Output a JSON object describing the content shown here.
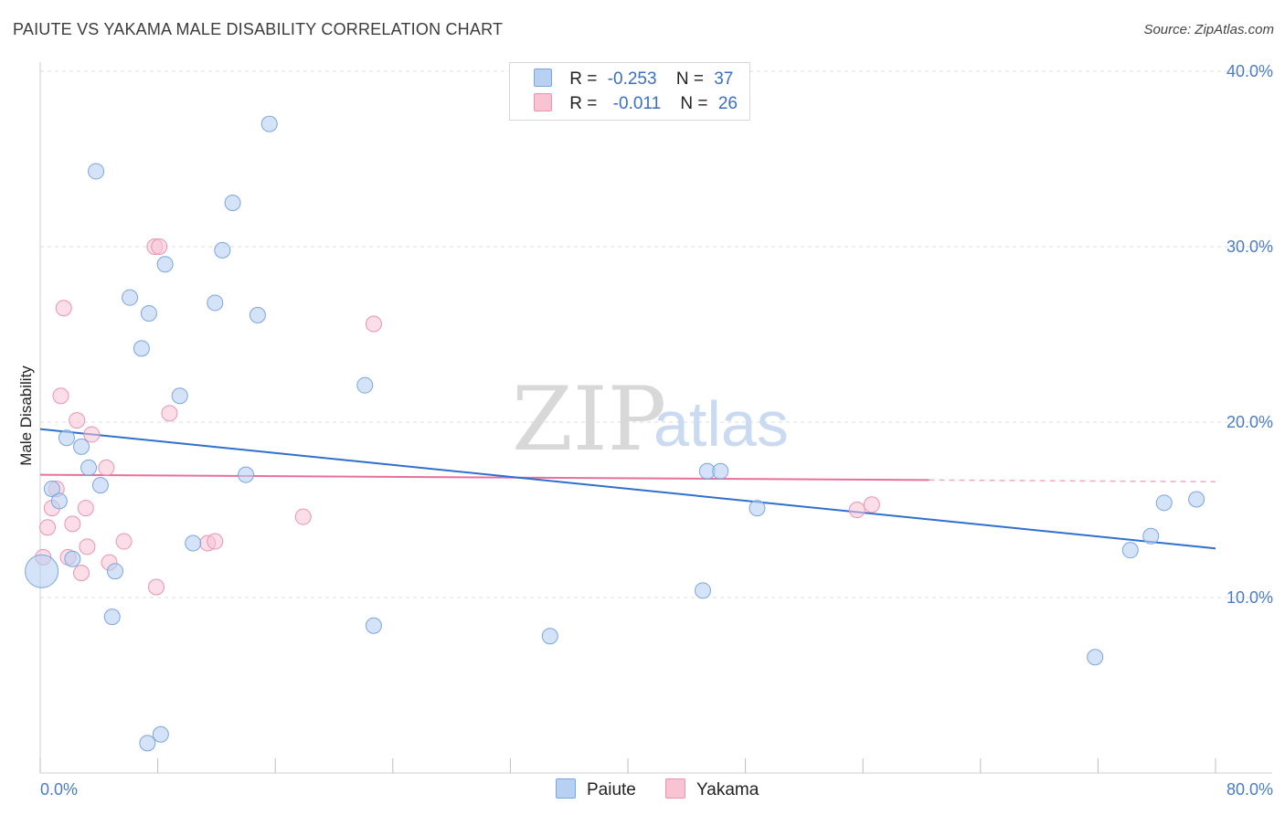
{
  "header": {
    "title": "PAIUTE VS YAKAMA MALE DISABILITY CORRELATION CHART",
    "source": "Source: ZipAtlas.com"
  },
  "watermark": {
    "part1": "ZIP",
    "part2": "atlas"
  },
  "legend": {
    "rows": [
      {
        "r_label": "R =",
        "r_value": "-0.253",
        "n_label": "N =",
        "n_value": "37"
      },
      {
        "r_label": "R =",
        "r_value": "-0.011",
        "n_label": "N =",
        "n_value": "26"
      }
    ]
  },
  "bottom_legend": {
    "paiute": "Paiute",
    "yakama": "Yakama"
  },
  "colors": {
    "paiute_fill": "#b8d0f2",
    "paiute_stroke": "#7aa6e0",
    "paiute_line": "#2f6fce",
    "yakama_fill": "#f8c3d3",
    "yakama_stroke": "#ec93b1",
    "yakama_line": "#e8709c",
    "tick": "#4a7cc9",
    "grid": "#dddddd"
  },
  "chart_data": {
    "type": "scatter",
    "title": "PAIUTE VS YAKAMA MALE DISABILITY CORRELATION CHART",
    "xlabel": "",
    "ylabel": "Male Disability",
    "xlim": [
      0,
      80
    ],
    "ylim": [
      0,
      40
    ],
    "x_tick_labels": [
      "0.0%",
      "80.0%"
    ],
    "y_tick_labels": [
      "10.0%",
      "20.0%",
      "30.0%",
      "40.0%"
    ],
    "y_ticks": [
      10,
      20,
      30,
      40
    ],
    "grid": true,
    "series": [
      {
        "name": "Paiute",
        "r": -0.253,
        "n": 37,
        "trend": {
          "x": [
            0,
            80
          ],
          "y": [
            19.6,
            12.8
          ]
        },
        "points": [
          [
            0.1,
            11.5,
            "large"
          ],
          [
            0.8,
            16.2
          ],
          [
            1.3,
            15.5
          ],
          [
            1.8,
            19.1
          ],
          [
            2.2,
            12.2
          ],
          [
            2.8,
            18.6
          ],
          [
            3.3,
            17.4
          ],
          [
            4.1,
            16.4
          ],
          [
            4.9,
            8.9
          ],
          [
            5.1,
            11.5
          ],
          [
            3.8,
            34.3
          ],
          [
            6.1,
            27.1
          ],
          [
            6.9,
            24.2
          ],
          [
            7.4,
            26.2
          ],
          [
            7.3,
            1.7
          ],
          [
            8.2,
            2.2
          ],
          [
            8.5,
            29.0
          ],
          [
            9.5,
            21.5
          ],
          [
            10.4,
            13.1
          ],
          [
            11.9,
            26.8
          ],
          [
            12.4,
            29.8
          ],
          [
            13.1,
            32.5
          ],
          [
            14.0,
            17.0
          ],
          [
            14.8,
            26.1
          ],
          [
            15.6,
            37.0
          ],
          [
            22.1,
            22.1
          ],
          [
            22.7,
            8.4
          ],
          [
            34.7,
            7.8
          ],
          [
            45.1,
            10.4
          ],
          [
            45.4,
            17.2
          ],
          [
            46.3,
            17.2
          ],
          [
            48.8,
            15.1
          ],
          [
            71.8,
            6.6
          ],
          [
            74.2,
            12.7
          ],
          [
            75.6,
            13.5
          ],
          [
            76.5,
            15.4
          ],
          [
            78.7,
            15.6
          ]
        ]
      },
      {
        "name": "Yakama",
        "r": -0.011,
        "n": 26,
        "trend": {
          "x": [
            0,
            60.5
          ],
          "y": [
            17.0,
            16.7
          ],
          "dashed_x": [
            60.5,
            80
          ],
          "dashed_y": [
            16.7,
            16.6
          ]
        },
        "points": [
          [
            0.2,
            12.3
          ],
          [
            0.5,
            14.0
          ],
          [
            0.8,
            15.1
          ],
          [
            1.1,
            16.2
          ],
          [
            1.4,
            21.5
          ],
          [
            1.6,
            26.5
          ],
          [
            1.9,
            12.3
          ],
          [
            2.2,
            14.2
          ],
          [
            2.5,
            20.1
          ],
          [
            2.8,
            11.4
          ],
          [
            3.1,
            15.1
          ],
          [
            3.2,
            12.9
          ],
          [
            3.5,
            19.3
          ],
          [
            4.5,
            17.4
          ],
          [
            4.7,
            12.0
          ],
          [
            5.7,
            13.2
          ],
          [
            7.8,
            30.0
          ],
          [
            8.1,
            30.0
          ],
          [
            7.9,
            10.6
          ],
          [
            8.8,
            20.5
          ],
          [
            11.4,
            13.1
          ],
          [
            11.9,
            13.2
          ],
          [
            17.9,
            14.6
          ],
          [
            22.7,
            25.6
          ],
          [
            55.6,
            15.0
          ],
          [
            56.6,
            15.3
          ]
        ]
      }
    ]
  }
}
